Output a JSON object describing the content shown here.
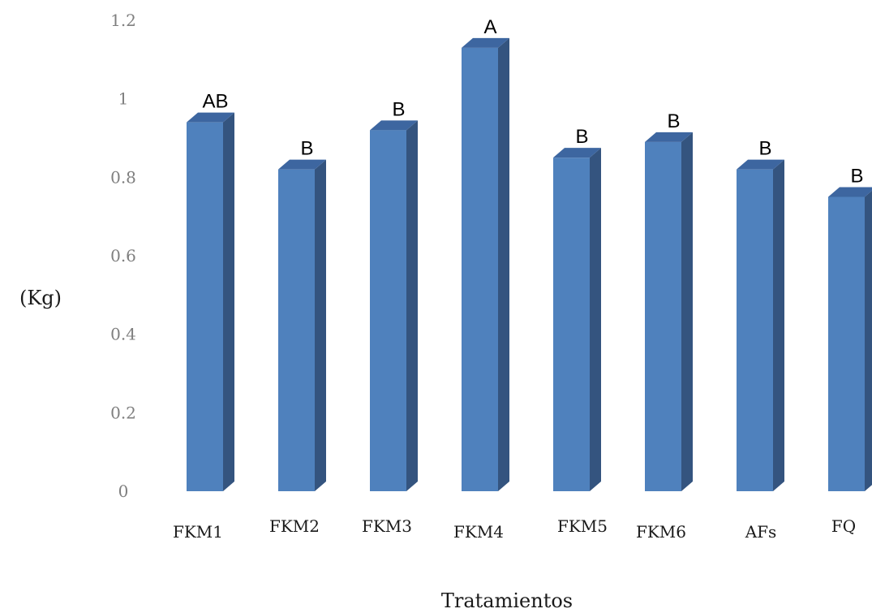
{
  "colors": {
    "bar_front": "#4f81bd",
    "bar_side": "#34547f",
    "bar_top": "#3d66a0"
  },
  "chart_data": {
    "type": "bar",
    "categories": [
      "FKM1",
      "FKM2",
      "FKM3",
      "FKM4",
      "FKM5",
      "FKM6",
      "AFs",
      "FQ"
    ],
    "values": [
      0.94,
      0.82,
      0.92,
      1.13,
      0.85,
      0.89,
      0.82,
      0.75
    ],
    "annotations": [
      "AB",
      "B",
      "B",
      "A",
      "B",
      "B",
      "B",
      "B"
    ],
    "ylabel": "(Kg)",
    "xlabel": "Tratamientos",
    "ylim": [
      0,
      1.2
    ],
    "yticks": [
      "0",
      "0.2",
      "0.4",
      "0.6",
      "0.8",
      "1",
      "1.2"
    ],
    "grid": false,
    "style": "3d-column"
  }
}
